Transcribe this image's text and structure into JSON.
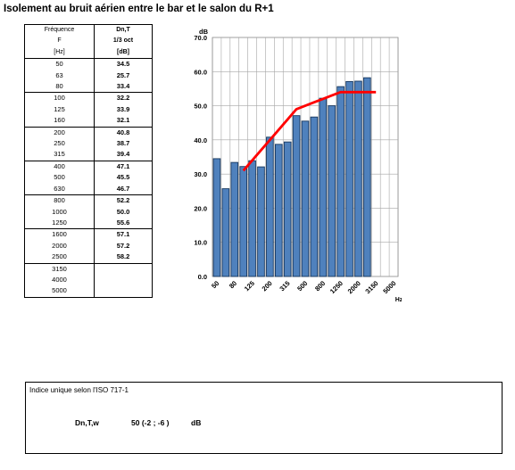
{
  "title": "Isolement au bruit aérien entre le bar et le salon du R+1",
  "table": {
    "headers": [
      [
        "Fréquence",
        "Dn,T"
      ],
      [
        "F",
        "1/3 oct"
      ],
      [
        "[Hz]",
        "[dB]"
      ]
    ],
    "groups": [
      [
        [
          "50",
          "34.5"
        ],
        [
          "63",
          "25.7"
        ],
        [
          "80",
          "33.4"
        ]
      ],
      [
        [
          "100",
          "32.2"
        ],
        [
          "125",
          "33.9"
        ],
        [
          "160",
          "32.1"
        ]
      ],
      [
        [
          "200",
          "40.8"
        ],
        [
          "250",
          "38.7"
        ],
        [
          "315",
          "39.4"
        ]
      ],
      [
        [
          "400",
          "47.1"
        ],
        [
          "500",
          "45.5"
        ],
        [
          "630",
          "46.7"
        ]
      ],
      [
        [
          "800",
          "52.2"
        ],
        [
          "1000",
          "50.0"
        ],
        [
          "1250",
          "55.6"
        ]
      ],
      [
        [
          "1600",
          "57.1"
        ],
        [
          "2000",
          "57.2"
        ],
        [
          "2500",
          "58.2"
        ]
      ],
      [
        [
          "3150",
          ""
        ],
        [
          "4000",
          ""
        ],
        [
          "5000",
          ""
        ]
      ]
    ]
  },
  "chart_data": {
    "type": "bar",
    "ylabel": "dB",
    "xlabel": "Hz",
    "ylim": [
      0,
      70
    ],
    "yticks": [
      "0.0",
      "10.0",
      "20.0",
      "30.0",
      "40.0",
      "50.0",
      "60.0",
      "70.0"
    ],
    "xtick_labels": [
      "50",
      "80",
      "125",
      "200",
      "315",
      "500",
      "800",
      "1250",
      "2000",
      "3150",
      "5000"
    ],
    "categories": [
      "50",
      "63",
      "80",
      "100",
      "125",
      "160",
      "200",
      "250",
      "315",
      "400",
      "500",
      "630",
      "800",
      "1000",
      "1250",
      "1600",
      "2000",
      "2500",
      "3150",
      "4000",
      "5000"
    ],
    "values": [
      34.5,
      25.7,
      33.4,
      32.2,
      33.9,
      32.1,
      40.8,
      38.7,
      39.4,
      47.1,
      45.5,
      46.7,
      52.2,
      50.0,
      55.6,
      57.1,
      57.2,
      58.2,
      null,
      null,
      null
    ],
    "reference_curve": {
      "categories": [
        "100",
        "125",
        "160",
        "200",
        "250",
        "315",
        "400",
        "500",
        "630",
        "800",
        "1000",
        "1250",
        "1600",
        "2000",
        "2500",
        "3150"
      ],
      "values": [
        31,
        34,
        37,
        40,
        43,
        46,
        49,
        50,
        51,
        52,
        53,
        54,
        54,
        54,
        54,
        54
      ]
    },
    "grid": true,
    "colors": {
      "bar": "#4f81bd",
      "bar_stroke": "#17375e",
      "curve": "#ff0000"
    }
  },
  "index": {
    "label": "Indice unique selon l'ISO 717-1",
    "name": "Dn,T,w",
    "value": "50 (-2 ; -6 )",
    "unit": "dB"
  }
}
